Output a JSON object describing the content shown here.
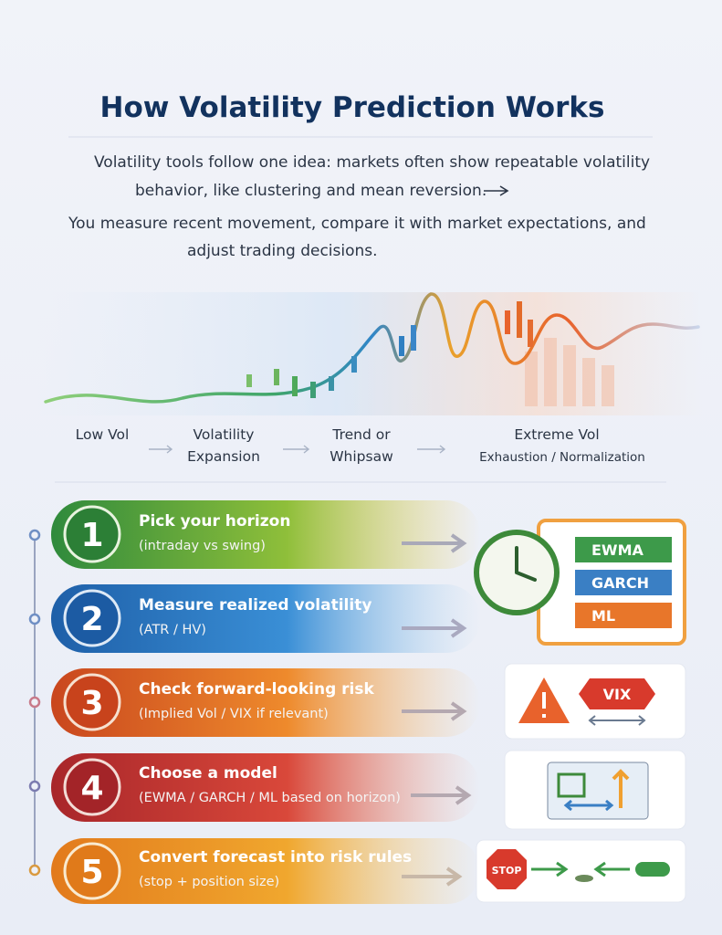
{
  "header": {
    "title": "How Volatility Prediction Works"
  },
  "intro": {
    "lines": [
      "Volatility tools follow one idea: markets often show repeatable volatility",
      "behavior, like clustering and mean reversion.",
      "You measure recent movement, compare it with market expectations, and",
      "adjust trading decisions."
    ]
  },
  "phases": [
    {
      "lines": [
        "Low Vol"
      ]
    },
    {
      "lines": [
        "Volatility",
        "Expansion"
      ]
    },
    {
      "lines": [
        "Trend or",
        "Whipsaw"
      ]
    },
    {
      "lines": [
        "Extreme Vol",
        "Exhaustion / Normalization"
      ]
    }
  ],
  "steps": [
    {
      "number": "1",
      "title": "Pick your horizon",
      "subtitle": "(intraday vs swing)"
    },
    {
      "number": "2",
      "title": "Measure realized volatility",
      "subtitle": "(ATR / HV)"
    },
    {
      "number": "3",
      "title": "Check forward-looking risk",
      "subtitle": "(Implied Vol / VIX if relevant)"
    },
    {
      "number": "4",
      "title": "Choose a model",
      "subtitle": "(EWMA / GARCH / ML based on horizon)"
    },
    {
      "number": "5",
      "title": "Convert forecast into risk rules",
      "subtitle": "(stop + position size)"
    }
  ],
  "icons": {
    "models": [
      "EWMA",
      "GARCH",
      "ML"
    ],
    "risk_tag": "VIX",
    "stop_sign": "STOP"
  }
}
